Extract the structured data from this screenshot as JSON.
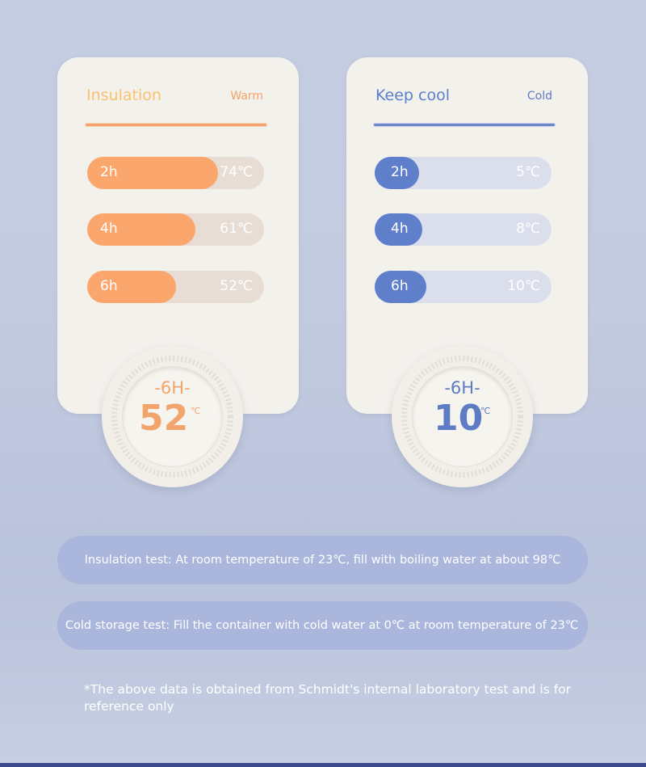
{
  "warm_card": {
    "title": "Insulation",
    "tag": "Warm",
    "color_main": "#fba66d",
    "rows": [
      {
        "label": "2h",
        "value": "74℃",
        "fill": 0.74
      },
      {
        "label": "4h",
        "value": "61℃",
        "fill": 0.61
      },
      {
        "label": "6h",
        "value": "52℃",
        "fill": 0.5
      }
    ],
    "dial": {
      "hours": "-6H-",
      "temp": "52",
      "unit": "℃"
    }
  },
  "cold_card": {
    "title": "Keep cool",
    "tag": "Cold",
    "color_main": "#5f7fcb",
    "rows": [
      {
        "label": "2h",
        "value": "5℃",
        "fill": 0.25
      },
      {
        "label": "4h",
        "value": "8℃",
        "fill": 0.27
      },
      {
        "label": "6h",
        "value": "10℃",
        "fill": 0.29
      }
    ],
    "dial": {
      "hours": "-6H-",
      "temp": "10",
      "unit": "℃"
    }
  },
  "notes": {
    "insulation_test": "Insulation test: At room temperature of 23℃, fill with boiling water at about 98℃",
    "cold_test": "Cold storage test: Fill the container with cold water at 0℃ at room temperature of 23℃",
    "footnote": "*The above data is obtained from Schmidt's internal laboratory test and is for reference only"
  }
}
